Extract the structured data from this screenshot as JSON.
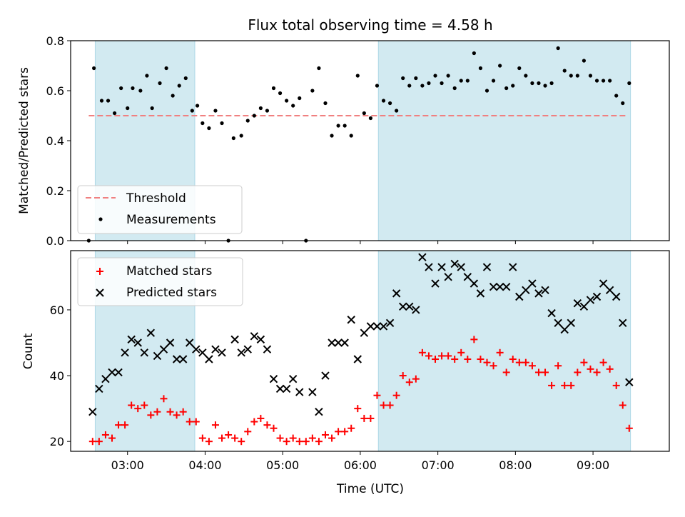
{
  "chart_data": [
    {
      "type": "scatter",
      "title": "Flux total observing time = 4.58 h",
      "xlabel": "",
      "ylabel": "Matched/Predicted stars",
      "ylim": [
        0,
        0.8
      ],
      "yticks": [
        "0.0",
        "0.2",
        "0.4",
        "0.6",
        "0.8"
      ],
      "xlim": [
        "02:16",
        "09:59"
      ],
      "x_ticks": [
        "03:00",
        "04:00",
        "05:00",
        "06:00",
        "07:00",
        "08:00",
        "09:00"
      ],
      "shaded_intervals": [
        [
          "02:35",
          "03:52"
        ],
        [
          "06:14",
          "09:29"
        ]
      ],
      "shade_color": "#add8e6",
      "threshold": {
        "name": "Threshold",
        "value": 0.5,
        "x_range": [
          "02:30",
          "09:26"
        ],
        "color": "#f08080"
      },
      "series": [
        {
          "name": "Measurements",
          "color": "#000000",
          "points": [
            [
              "02:30",
              0.0
            ],
            [
              "02:34",
              0.69
            ],
            [
              "02:40",
              0.56
            ],
            [
              "02:45",
              0.56
            ],
            [
              "02:50",
              0.51
            ],
            [
              "02:55",
              0.61
            ],
            [
              "03:00",
              0.53
            ],
            [
              "03:04",
              0.61
            ],
            [
              "03:10",
              0.6
            ],
            [
              "03:15",
              0.66
            ],
            [
              "03:19",
              0.53
            ],
            [
              "03:25",
              0.63
            ],
            [
              "03:30",
              0.69
            ],
            [
              "03:35",
              0.58
            ],
            [
              "03:40",
              0.62
            ],
            [
              "03:45",
              0.65
            ],
            [
              "03:50",
              0.52
            ],
            [
              "03:54",
              0.54
            ],
            [
              "03:58",
              0.47
            ],
            [
              "04:03",
              0.45
            ],
            [
              "04:08",
              0.52
            ],
            [
              "04:13",
              0.47
            ],
            [
              "04:18",
              0.0
            ],
            [
              "04:22",
              0.41
            ],
            [
              "04:28",
              0.42
            ],
            [
              "04:33",
              0.48
            ],
            [
              "04:38",
              0.5
            ],
            [
              "04:43",
              0.53
            ],
            [
              "04:48",
              0.52
            ],
            [
              "04:53",
              0.61
            ],
            [
              "04:58",
              0.59
            ],
            [
              "05:03",
              0.56
            ],
            [
              "05:08",
              0.54
            ],
            [
              "05:13",
              0.57
            ],
            [
              "05:18",
              0.0
            ],
            [
              "05:23",
              0.6
            ],
            [
              "05:28",
              0.69
            ],
            [
              "05:33",
              0.55
            ],
            [
              "05:38",
              0.42
            ],
            [
              "05:43",
              0.46
            ],
            [
              "05:48",
              0.46
            ],
            [
              "05:53",
              0.42
            ],
            [
              "05:58",
              0.66
            ],
            [
              "06:03",
              0.51
            ],
            [
              "06:08",
              0.49
            ],
            [
              "06:13",
              0.62
            ],
            [
              "06:18",
              0.56
            ],
            [
              "06:23",
              0.55
            ],
            [
              "06:28",
              0.52
            ],
            [
              "06:33",
              0.65
            ],
            [
              "06:38",
              0.62
            ],
            [
              "06:43",
              0.65
            ],
            [
              "06:48",
              0.62
            ],
            [
              "06:53",
              0.63
            ],
            [
              "06:58",
              0.66
            ],
            [
              "07:03",
              0.63
            ],
            [
              "07:08",
              0.66
            ],
            [
              "07:13",
              0.61
            ],
            [
              "07:18",
              0.64
            ],
            [
              "07:23",
              0.64
            ],
            [
              "07:28",
              0.75
            ],
            [
              "07:33",
              0.69
            ],
            [
              "07:38",
              0.6
            ],
            [
              "07:43",
              0.64
            ],
            [
              "07:48",
              0.7
            ],
            [
              "07:53",
              0.61
            ],
            [
              "07:58",
              0.62
            ],
            [
              "08:03",
              0.69
            ],
            [
              "08:08",
              0.66
            ],
            [
              "08:13",
              0.63
            ],
            [
              "08:18",
              0.63
            ],
            [
              "08:23",
              0.62
            ],
            [
              "08:28",
              0.63
            ],
            [
              "08:33",
              0.77
            ],
            [
              "08:38",
              0.68
            ],
            [
              "08:43",
              0.66
            ],
            [
              "08:48",
              0.66
            ],
            [
              "08:53",
              0.72
            ],
            [
              "08:58",
              0.66
            ],
            [
              "09:03",
              0.64
            ],
            [
              "09:08",
              0.64
            ],
            [
              "09:13",
              0.64
            ],
            [
              "09:18",
              0.58
            ],
            [
              "09:23",
              0.55
            ],
            [
              "09:28",
              0.63
            ]
          ]
        }
      ],
      "legend": "bottom-left"
    },
    {
      "type": "scatter",
      "title": "",
      "xlabel": "Time (UTC)",
      "ylabel": "Count",
      "ylim": [
        17,
        78
      ],
      "yticks": [
        "20",
        "40",
        "60"
      ],
      "xlim": [
        "02:16",
        "09:59"
      ],
      "x_ticks": [
        "03:00",
        "04:00",
        "05:00",
        "06:00",
        "07:00",
        "08:00",
        "09:00"
      ],
      "shaded_intervals": [
        [
          "02:35",
          "03:52"
        ],
        [
          "06:14",
          "09:29"
        ]
      ],
      "shade_color": "#add8e6",
      "series": [
        {
          "name": "Matched stars",
          "marker": "plus",
          "color": "#ff0000",
          "points": [
            [
              "02:33",
              20
            ],
            [
              "02:38",
              20
            ],
            [
              "02:43",
              22
            ],
            [
              "02:48",
              21
            ],
            [
              "02:53",
              25
            ],
            [
              "02:58",
              25
            ],
            [
              "03:03",
              31
            ],
            [
              "03:08",
              30
            ],
            [
              "03:13",
              31
            ],
            [
              "03:18",
              28
            ],
            [
              "03:23",
              29
            ],
            [
              "03:28",
              33
            ],
            [
              "03:33",
              29
            ],
            [
              "03:38",
              28
            ],
            [
              "03:43",
              29
            ],
            [
              "03:48",
              26
            ],
            [
              "03:53",
              26
            ],
            [
              "03:58",
              21
            ],
            [
              "04:03",
              20
            ],
            [
              "04:08",
              25
            ],
            [
              "04:13",
              21
            ],
            [
              "04:18",
              22
            ],
            [
              "04:23",
              21
            ],
            [
              "04:28",
              20
            ],
            [
              "04:33",
              23
            ],
            [
              "04:38",
              26
            ],
            [
              "04:43",
              27
            ],
            [
              "04:48",
              25
            ],
            [
              "04:53",
              24
            ],
            [
              "04:58",
              21
            ],
            [
              "05:03",
              20
            ],
            [
              "05:08",
              21
            ],
            [
              "05:13",
              20
            ],
            [
              "05:18",
              20
            ],
            [
              "05:23",
              21
            ],
            [
              "05:28",
              20
            ],
            [
              "05:33",
              22
            ],
            [
              "05:38",
              21
            ],
            [
              "05:43",
              23
            ],
            [
              "05:48",
              23
            ],
            [
              "05:53",
              24
            ],
            [
              "05:58",
              30
            ],
            [
              "06:03",
              27
            ],
            [
              "06:08",
              27
            ],
            [
              "06:13",
              34
            ],
            [
              "06:18",
              31
            ],
            [
              "06:23",
              31
            ],
            [
              "06:28",
              34
            ],
            [
              "06:33",
              40
            ],
            [
              "06:38",
              38
            ],
            [
              "06:43",
              39
            ],
            [
              "06:48",
              47
            ],
            [
              "06:53",
              46
            ],
            [
              "06:58",
              45
            ],
            [
              "07:03",
              46
            ],
            [
              "07:08",
              46
            ],
            [
              "07:13",
              45
            ],
            [
              "07:18",
              47
            ],
            [
              "07:23",
              45
            ],
            [
              "07:28",
              51
            ],
            [
              "07:33",
              45
            ],
            [
              "07:38",
              44
            ],
            [
              "07:43",
              43
            ],
            [
              "07:48",
              47
            ],
            [
              "07:53",
              41
            ],
            [
              "07:58",
              45
            ],
            [
              "08:03",
              44
            ],
            [
              "08:08",
              44
            ],
            [
              "08:13",
              43
            ],
            [
              "08:18",
              41
            ],
            [
              "08:23",
              41
            ],
            [
              "08:28",
              37
            ],
            [
              "08:33",
              43
            ],
            [
              "08:38",
              37
            ],
            [
              "08:43",
              37
            ],
            [
              "08:48",
              41
            ],
            [
              "08:53",
              44
            ],
            [
              "08:58",
              42
            ],
            [
              "09:03",
              41
            ],
            [
              "09:08",
              44
            ],
            [
              "09:13",
              42
            ],
            [
              "09:18",
              37
            ],
            [
              "09:23",
              31
            ],
            [
              "09:28",
              24
            ]
          ]
        },
        {
          "name": "Predicted stars",
          "marker": "x",
          "color": "#000000",
          "points": [
            [
              "02:33",
              29
            ],
            [
              "02:38",
              36
            ],
            [
              "02:43",
              39
            ],
            [
              "02:48",
              41
            ],
            [
              "02:53",
              41
            ],
            [
              "02:58",
              47
            ],
            [
              "03:03",
              51
            ],
            [
              "03:08",
              50
            ],
            [
              "03:13",
              47
            ],
            [
              "03:18",
              53
            ],
            [
              "03:23",
              46
            ],
            [
              "03:28",
              48
            ],
            [
              "03:33",
              50
            ],
            [
              "03:38",
              45
            ],
            [
              "03:43",
              45
            ],
            [
              "03:48",
              50
            ],
            [
              "03:53",
              48
            ],
            [
              "03:58",
              47
            ],
            [
              "04:03",
              45
            ],
            [
              "04:08",
              48
            ],
            [
              "04:13",
              47
            ],
            [
              "04:23",
              51
            ],
            [
              "04:28",
              47
            ],
            [
              "04:33",
              48
            ],
            [
              "04:38",
              52
            ],
            [
              "04:43",
              51
            ],
            [
              "04:48",
              48
            ],
            [
              "04:53",
              39
            ],
            [
              "04:58",
              36
            ],
            [
              "05:03",
              36
            ],
            [
              "05:08",
              39
            ],
            [
              "05:13",
              35
            ],
            [
              "05:23",
              35
            ],
            [
              "05:28",
              29
            ],
            [
              "05:33",
              40
            ],
            [
              "05:38",
              50
            ],
            [
              "05:43",
              50
            ],
            [
              "05:48",
              50
            ],
            [
              "05:53",
              57
            ],
            [
              "05:58",
              45
            ],
            [
              "06:03",
              53
            ],
            [
              "06:08",
              55
            ],
            [
              "06:13",
              55
            ],
            [
              "06:18",
              55
            ],
            [
              "06:23",
              56
            ],
            [
              "06:28",
              65
            ],
            [
              "06:33",
              61
            ],
            [
              "06:38",
              61
            ],
            [
              "06:43",
              60
            ],
            [
              "06:48",
              76
            ],
            [
              "06:53",
              73
            ],
            [
              "06:58",
              68
            ],
            [
              "07:03",
              73
            ],
            [
              "07:08",
              70
            ],
            [
              "07:13",
              74
            ],
            [
              "07:18",
              73
            ],
            [
              "07:23",
              70
            ],
            [
              "07:28",
              68
            ],
            [
              "07:33",
              65
            ],
            [
              "07:38",
              73
            ],
            [
              "07:43",
              67
            ],
            [
              "07:48",
              67
            ],
            [
              "07:53",
              67
            ],
            [
              "07:58",
              73
            ],
            [
              "08:03",
              64
            ],
            [
              "08:08",
              66
            ],
            [
              "08:13",
              68
            ],
            [
              "08:18",
              65
            ],
            [
              "08:23",
              66
            ],
            [
              "08:28",
              59
            ],
            [
              "08:33",
              56
            ],
            [
              "08:38",
              54
            ],
            [
              "08:43",
              56
            ],
            [
              "08:48",
              62
            ],
            [
              "08:53",
              61
            ],
            [
              "08:58",
              63
            ],
            [
              "09:03",
              64
            ],
            [
              "09:08",
              68
            ],
            [
              "09:13",
              66
            ],
            [
              "09:18",
              64
            ],
            [
              "09:23",
              56
            ],
            [
              "09:28",
              38
            ]
          ]
        }
      ],
      "legend": "top-left"
    }
  ]
}
